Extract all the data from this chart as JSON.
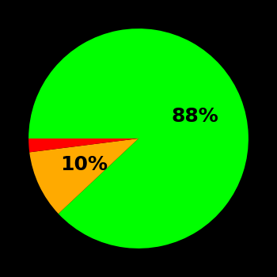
{
  "slices": [
    88,
    10,
    2
  ],
  "colors": [
    "#00ff00",
    "#ffaa00",
    "#ff0000"
  ],
  "labels": [
    "88%",
    "10%",
    ""
  ],
  "background_color": "#000000",
  "label_fontsize": 18,
  "label_color": "#000000",
  "startangle": 180,
  "figsize": [
    3.5,
    3.5
  ],
  "dpi": 100
}
